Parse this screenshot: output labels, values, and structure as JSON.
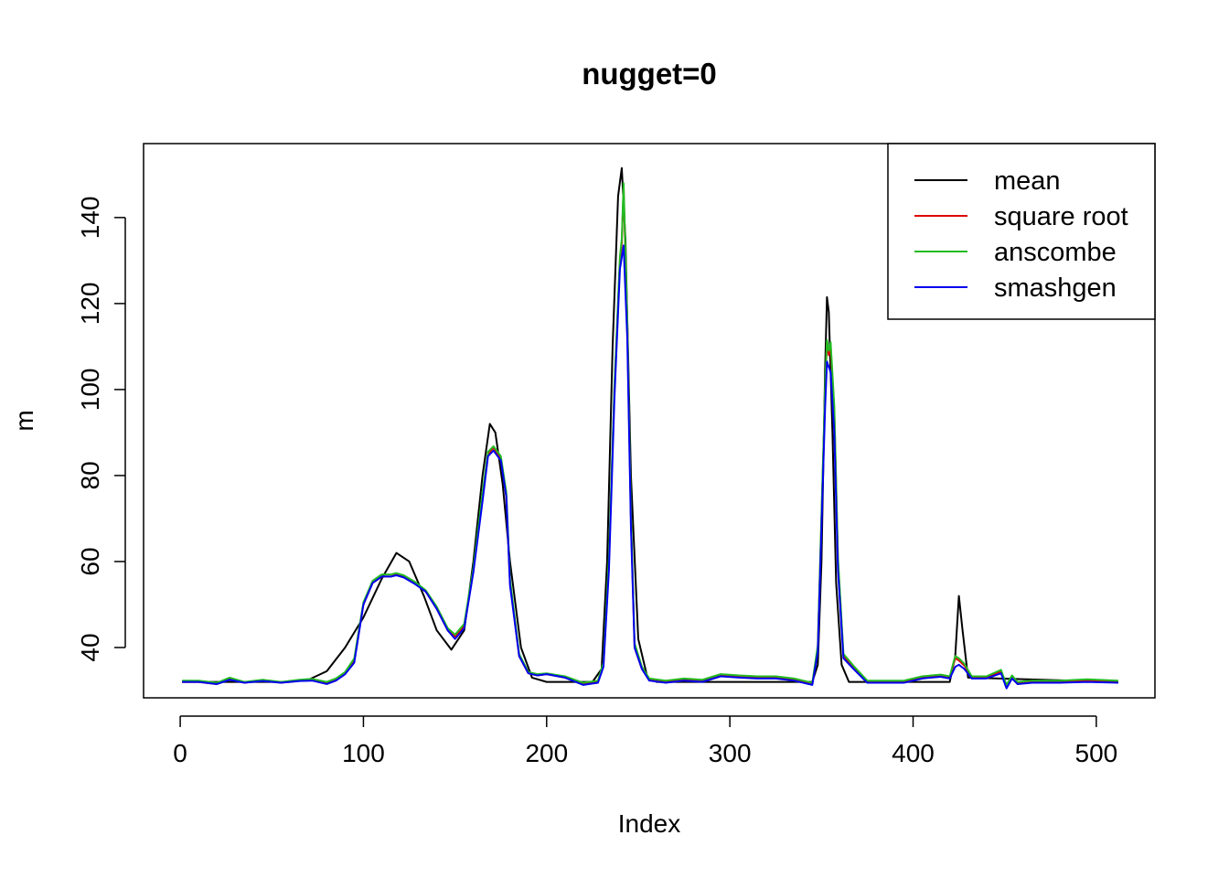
{
  "chart_data": {
    "type": "line",
    "title": "nugget=0",
    "xlabel": "Index",
    "ylabel": "m",
    "xlim": [
      -20,
      532
    ],
    "ylim": [
      28.3,
      157.2
    ],
    "x_ticks": [
      0,
      100,
      200,
      300,
      400,
      500
    ],
    "y_ticks": [
      40,
      60,
      80,
      100,
      120,
      140
    ],
    "grid": false,
    "legend": {
      "placement": "top-right",
      "entries": [
        {
          "label": "mean",
          "color": "#000000"
        },
        {
          "label": "square root",
          "color": "#DF0000"
        },
        {
          "label": "anscombe",
          "color": "#22BB22"
        },
        {
          "label": "smashgen",
          "color": "#0000EE"
        }
      ]
    },
    "series": [
      {
        "name": "mean",
        "color": "#000000",
        "x": [
          1,
          60,
          70,
          80,
          90,
          100,
          110,
          118,
          125,
          133,
          140,
          148,
          155,
          160,
          165,
          169,
          172,
          176,
          180,
          186,
          192,
          200,
          225,
          230,
          233,
          236,
          239,
          241,
          243,
          246,
          250,
          255,
          260,
          345,
          348,
          350,
          352,
          353,
          354,
          356,
          358,
          361,
          365,
          420,
          423,
          425,
          427,
          430,
          512
        ],
        "y": [
          32,
          32,
          32.5,
          34.5,
          40,
          47,
          56,
          62,
          60,
          52,
          44,
          39.5,
          44,
          60,
          80,
          92,
          90,
          78,
          60,
          40,
          33,
          32,
          32,
          35,
          60,
          110,
          145,
          151.5,
          135,
          80,
          42,
          33,
          32,
          32,
          36,
          60,
          105,
          121.5,
          118,
          90,
          55,
          36,
          32,
          32,
          38,
          52,
          44,
          33,
          32
        ]
      },
      {
        "name": "square root",
        "color": "#DF0000",
        "x": [
          1,
          10,
          20,
          27,
          35,
          45,
          55,
          65,
          72,
          80,
          85,
          90,
          95,
          100,
          105,
          110,
          115,
          118,
          122,
          128,
          134,
          140,
          146,
          150,
          155,
          160,
          165,
          168,
          171,
          175,
          178,
          180,
          185,
          190,
          195,
          200,
          210,
          220,
          228,
          231,
          234,
          237,
          240,
          241,
          242,
          244,
          246,
          248,
          252,
          256,
          265,
          275,
          285,
          295,
          305,
          315,
          325,
          335,
          340,
          345,
          348,
          350,
          352,
          353,
          354,
          355,
          357,
          359,
          362,
          368,
          375,
          385,
          395,
          405,
          415,
          420,
          423,
          425,
          428,
          432,
          440,
          448,
          451,
          454,
          457,
          465,
          480,
          495,
          512
        ],
        "y": [
          32,
          32,
          31.5,
          32.8,
          31.8,
          32.3,
          31.8,
          32.3,
          32.5,
          31.7,
          32.5,
          34,
          37,
          50,
          55,
          56.5,
          56.5,
          57,
          56.5,
          55,
          53,
          49,
          44,
          42.5,
          45,
          58,
          75,
          85,
          86.5,
          84,
          75,
          55,
          38,
          34,
          33.5,
          33.8,
          33,
          31.5,
          32,
          36,
          60,
          100,
          130,
          134,
          147,
          115,
          70,
          40,
          35,
          32.5,
          32,
          32.5,
          32.2,
          33.5,
          33.2,
          33,
          33,
          32.5,
          32,
          31.5,
          40,
          70,
          100,
          111,
          108,
          110,
          95,
          60,
          38,
          35,
          32,
          32,
          32,
          33,
          33.3,
          33,
          37.5,
          37,
          35.8,
          33,
          33,
          34.5,
          31,
          33.2,
          31.8,
          32,
          32,
          32.3,
          32
        ]
      },
      {
        "name": "anscombe",
        "color": "#22BB22",
        "x": [
          1,
          10,
          20,
          27,
          35,
          45,
          55,
          65,
          72,
          80,
          85,
          90,
          95,
          100,
          105,
          110,
          115,
          118,
          122,
          128,
          134,
          140,
          146,
          150,
          155,
          160,
          165,
          168,
          171,
          175,
          178,
          180,
          185,
          190,
          195,
          200,
          210,
          220,
          228,
          231,
          234,
          237,
          240,
          241,
          242,
          244,
          246,
          248,
          252,
          256,
          265,
          275,
          285,
          295,
          305,
          315,
          325,
          335,
          340,
          345,
          348,
          350,
          352,
          353,
          354,
          355,
          357,
          359,
          362,
          368,
          375,
          385,
          395,
          405,
          415,
          420,
          423,
          425,
          428,
          432,
          440,
          448,
          451,
          454,
          457,
          465,
          480,
          495,
          512
        ],
        "y": [
          32.3,
          32.3,
          31.8,
          33,
          32,
          32.5,
          32,
          32.5,
          32.7,
          32,
          32.8,
          34.3,
          37.5,
          50.5,
          55.5,
          57,
          57,
          57.3,
          56.8,
          55.3,
          53.3,
          49.5,
          44.5,
          43,
          45.5,
          58.5,
          76,
          85.5,
          86.8,
          84.5,
          76,
          56,
          38.5,
          34.3,
          33.8,
          34,
          33.3,
          31.8,
          32.3,
          36.5,
          61,
          101,
          131,
          135,
          148,
          116,
          71,
          41,
          35.5,
          32.8,
          32.3,
          32.8,
          32.5,
          33.8,
          33.5,
          33.3,
          33.3,
          32.8,
          32.3,
          31.8,
          40.5,
          71,
          101,
          111.5,
          109,
          111,
          96,
          61,
          38.5,
          35.5,
          32.3,
          32.3,
          32.3,
          33.3,
          33.7,
          33.3,
          38,
          37.5,
          36.2,
          33.3,
          33.3,
          34.8,
          31.3,
          33.5,
          32,
          32.3,
          32.3,
          32.6,
          32.3
        ]
      },
      {
        "name": "smashgen",
        "color": "#0000EE",
        "x": [
          1,
          10,
          20,
          27,
          35,
          45,
          55,
          65,
          72,
          80,
          85,
          90,
          95,
          100,
          105,
          110,
          115,
          118,
          122,
          128,
          134,
          140,
          146,
          150,
          155,
          160,
          165,
          168,
          171,
          175,
          178,
          180,
          185,
          190,
          195,
          200,
          210,
          220,
          228,
          231,
          234,
          237,
          240,
          242,
          244,
          246,
          248,
          252,
          256,
          265,
          275,
          285,
          295,
          305,
          315,
          325,
          335,
          340,
          345,
          348,
          350,
          352,
          353,
          355,
          357,
          359,
          362,
          368,
          375,
          385,
          395,
          405,
          415,
          420,
          423,
          425,
          428,
          432,
          440,
          448,
          451,
          454,
          457,
          465,
          480,
          495,
          512
        ],
        "y": [
          32,
          32,
          31.5,
          32.5,
          31.8,
          32.2,
          31.8,
          32.2,
          32.3,
          31.5,
          32.3,
          33.8,
          36.5,
          50,
          55,
          56.5,
          56.5,
          56.8,
          56.3,
          54.8,
          53,
          49,
          44,
          42,
          44.5,
          57.5,
          74,
          84.5,
          85.8,
          83.5,
          75,
          54.5,
          38,
          34,
          33.5,
          33.8,
          33,
          31.3,
          31.8,
          35.5,
          58,
          98,
          128,
          133.5,
          112,
          68,
          40,
          35,
          32.3,
          31.8,
          32.3,
          32,
          33.3,
          33,
          32.8,
          32.8,
          32.3,
          31.8,
          31.3,
          39,
          68,
          96,
          106.5,
          104,
          90,
          58,
          37.5,
          34.8,
          31.8,
          31.8,
          31.8,
          32.8,
          33.2,
          32.8,
          35.5,
          36,
          35,
          32.8,
          32.8,
          34,
          30.5,
          32.8,
          31.5,
          31.8,
          31.8,
          32,
          31.8
        ]
      }
    ]
  }
}
